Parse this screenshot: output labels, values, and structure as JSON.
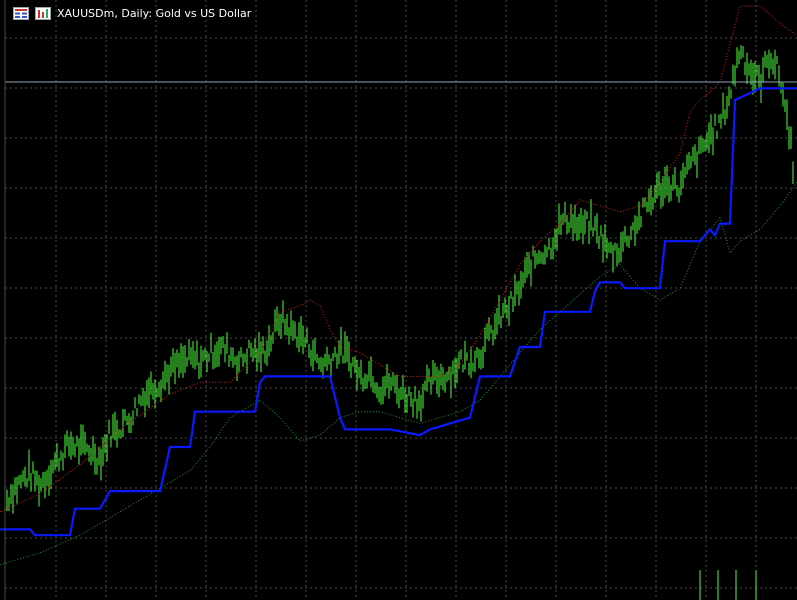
{
  "window": {
    "symbol": "XAUUSDm",
    "timeframe": "Daily",
    "description": "Gold vs US Dollar",
    "title_separator": ",",
    "title_colon": ":"
  },
  "icons": {
    "menu": "chart-list-icon",
    "chart_type": "bar-chart-icon"
  },
  "colors": {
    "background": "#000000",
    "grid": "#8a8a8a",
    "candles": "#4cff3a",
    "main_line": "#0a1aff",
    "upper_band": "#d81b0f",
    "lower_band": "#1b9a2a",
    "bid_line": "#8fa6b8",
    "title_text": "#ffffff"
  },
  "chart_data": {
    "type": "line",
    "title": "XAUUSDm, Daily: Gold vs US Dollar",
    "xlabel": "",
    "ylabel": "",
    "grid": true,
    "bid_line": 1,
    "series": [
      {
        "x": [
          0,
          10,
          20,
          30,
          40,
          50,
          60,
          70,
          80,
          90,
          100,
          110,
          120,
          130,
          140,
          150,
          160,
          170,
          180,
          190,
          200,
          210,
          220,
          230,
          240,
          250,
          260,
          270,
          280,
          290,
          300,
          310,
          320,
          330,
          340,
          350,
          360,
          370,
          380,
          390,
          400,
          410,
          420,
          430,
          440,
          450,
          460,
          470,
          480,
          490,
          500,
          510,
          520,
          530,
          540,
          550,
          560,
          570,
          580,
          590,
          600,
          610,
          620,
          630,
          640,
          650,
          660,
          670,
          680,
          690,
          700,
          710,
          720,
          730,
          740,
          750,
          760,
          770,
          780,
          790,
          797
        ],
        "y": [
          0.135,
          0.17,
          0.19,
          0.205,
          0.185,
          0.21,
          0.235,
          0.255,
          0.25,
          0.245,
          0.23,
          0.275,
          0.285,
          0.3,
          0.33,
          0.35,
          0.36,
          0.38,
          0.39,
          0.4,
          0.395,
          0.41,
          0.42,
          0.41,
          0.395,
          0.415,
          0.405,
          0.43,
          0.47,
          0.45,
          0.44,
          0.42,
          0.39,
          0.4,
          0.415,
          0.4,
          0.37,
          0.38,
          0.35,
          0.36,
          0.345,
          0.335,
          0.33,
          0.36,
          0.37,
          0.375,
          0.395,
          0.4,
          0.41,
          0.44,
          0.47,
          0.49,
          0.52,
          0.56,
          0.58,
          0.59,
          0.63,
          0.64,
          0.62,
          0.63,
          0.61,
          0.58,
          0.59,
          0.615,
          0.64,
          0.67,
          0.69,
          0.7,
          0.69,
          0.73,
          0.75,
          0.78,
          0.8,
          0.85,
          0.93,
          0.89,
          0.87,
          0.92,
          0.88,
          0.78,
          0.67
        ]
      },
      {
        "x": [
          0,
          30,
          35,
          70,
          75,
          100,
          110,
          160,
          170,
          190,
          195,
          255,
          260,
          265,
          290,
          330,
          340,
          345,
          390,
          420,
          430,
          470,
          480,
          510,
          520,
          540,
          545,
          590,
          595,
          600,
          620,
          625,
          660,
          665,
          700,
          705,
          710,
          715,
          720,
          730,
          735,
          760,
          790,
          797
        ],
        "y": [
          0.11,
          0.11,
          0.1,
          0.1,
          0.145,
          0.145,
          0.175,
          0.175,
          0.25,
          0.25,
          0.31,
          0.31,
          0.36,
          0.37,
          0.37,
          0.37,
          0.3,
          0.28,
          0.28,
          0.27,
          0.28,
          0.3,
          0.37,
          0.37,
          0.42,
          0.42,
          0.48,
          0.48,
          0.515,
          0.53,
          0.53,
          0.52,
          0.52,
          0.6,
          0.6,
          0.61,
          0.62,
          0.61,
          0.63,
          0.63,
          0.84,
          0.86,
          0.86,
          0.86
        ]
      },
      {
        "x": [
          0,
          40,
          80,
          120,
          170,
          200,
          230,
          260,
          280,
          300,
          310,
          320,
          330,
          340,
          360,
          380,
          400,
          420,
          440,
          460,
          480,
          500,
          520,
          540,
          560,
          580,
          600,
          620,
          640,
          660,
          680,
          690,
          700,
          720,
          740,
          760,
          780,
          797
        ],
        "y": [
          0.14,
          0.17,
          0.22,
          0.28,
          0.34,
          0.36,
          0.36,
          0.41,
          0.48,
          0.49,
          0.5,
          0.49,
          0.45,
          0.42,
          0.41,
          0.39,
          0.37,
          0.37,
          0.37,
          0.39,
          0.44,
          0.5,
          0.56,
          0.6,
          0.63,
          0.67,
          0.66,
          0.65,
          0.66,
          0.7,
          0.75,
          0.82,
          0.84,
          0.87,
          1.0,
          1.0,
          0.97,
          0.95
        ]
      },
      {
        "x": [
          0,
          40,
          80,
          120,
          160,
          190,
          210,
          230,
          260,
          280,
          300,
          320,
          340,
          360,
          380,
          400,
          420,
          440,
          460,
          480,
          500,
          520,
          540,
          560,
          580,
          600,
          620,
          640,
          660,
          680,
          700,
          720,
          730,
          740,
          760,
          780,
          797
        ],
        "y": [
          0.05,
          0.07,
          0.1,
          0.14,
          0.18,
          0.21,
          0.25,
          0.3,
          0.33,
          0.3,
          0.26,
          0.27,
          0.3,
          0.31,
          0.31,
          0.3,
          0.29,
          0.3,
          0.31,
          0.33,
          0.37,
          0.41,
          0.45,
          0.48,
          0.51,
          0.54,
          0.56,
          0.52,
          0.5,
          0.52,
          0.6,
          0.64,
          0.58,
          0.6,
          0.62,
          0.66,
          0.7
        ]
      }
    ]
  }
}
